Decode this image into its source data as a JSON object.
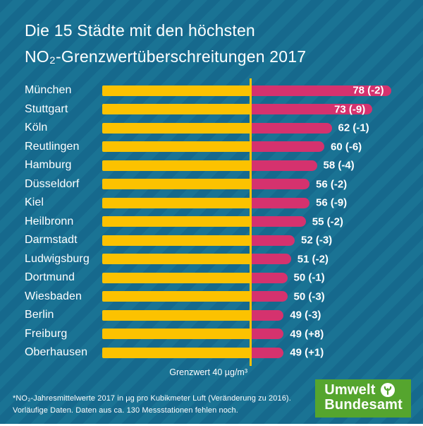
{
  "title": {
    "line1": "Die 15 Städte mit den höchsten",
    "line2": "NO₂-Grenzwertüberschreitungen 2017"
  },
  "chart_data": {
    "type": "bar",
    "orientation": "horizontal",
    "title": "Die 15 Städte mit den höchsten NO₂-Grenzwertüberschreitungen 2017",
    "unit": "µg/m³",
    "categories": [
      "München",
      "Stuttgart",
      "Köln",
      "Reutlingen",
      "Hamburg",
      "Düsseldorf",
      "Kiel",
      "Heilbronn",
      "Darmstadt",
      "Ludwigsburg",
      "Dortmund",
      "Wiesbaden",
      "Berlin",
      "Freiburg",
      "Oberhausen"
    ],
    "values": [
      78,
      73,
      62,
      60,
      58,
      56,
      56,
      55,
      52,
      51,
      50,
      50,
      49,
      49,
      49
    ],
    "changes_vs_2016": [
      -2,
      -9,
      -1,
      -6,
      -4,
      -2,
      -9,
      -2,
      -3,
      -2,
      -1,
      -3,
      -3,
      8,
      1
    ],
    "data_labels": [
      "78 (-2)",
      "73 (-9)",
      "62 (-1)",
      "60 (-6)",
      "58 (-4)",
      "56 (-2)",
      "56 (-9)",
      "55 (-2)",
      "52 (-3)",
      "51 (-2)",
      "50 (-1)",
      "50 (-3)",
      "49 (-3)",
      "49 (+8)",
      "49 (+1)"
    ],
    "xlim": [
      0,
      80
    ],
    "grid": false,
    "legend": false,
    "threshold": {
      "value": 40,
      "label": "Grenzwert 40 µg/m³"
    },
    "colors": {
      "bar_below_limit": "#fcc200",
      "bar_above_limit": "#d5326e",
      "threshold_line": "#fcc200",
      "text": "#ffffff",
      "background_stripe_a": "#16698d",
      "background_stripe_b": "#1a7394"
    }
  },
  "footnote": {
    "line1": "*NO₂-Jahresmittelwerte 2017 in µg pro Kubikmeter Luft (Veränderung zu 2016).",
    "line2": "Vorläufige Daten. Daten aus ca. 130 Messstationen fehlen noch."
  },
  "logo": {
    "line1": "Umwelt",
    "line2": "Bundesamt",
    "color": "#55a52e"
  }
}
